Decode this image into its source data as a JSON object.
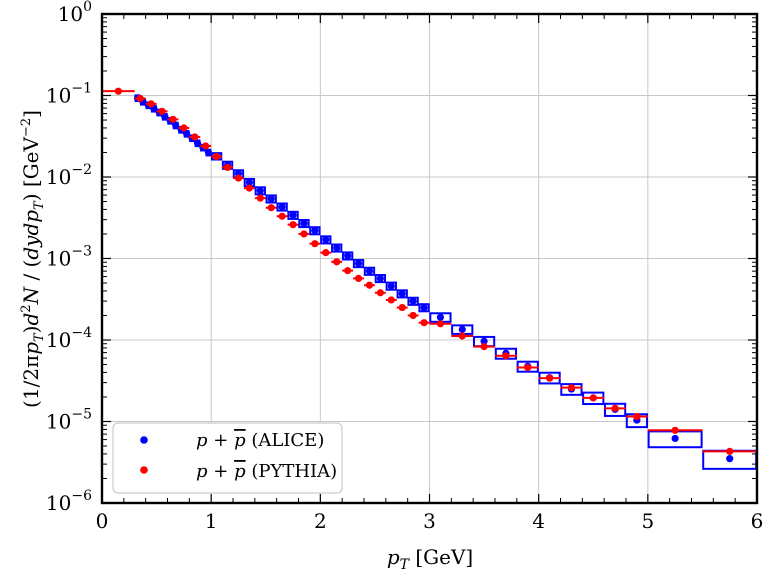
{
  "chart_data": {
    "type": "scatter",
    "title": "",
    "xlabel": "p_T [GeV]",
    "ylabel": "(1/2πp_T)d²N/(dydp_T) [GeV⁻²]",
    "xlim": [
      0,
      6
    ],
    "ylim": [
      1e-06,
      1
    ],
    "yscale": "log",
    "grid": true,
    "legend_position": "bottom-left",
    "x_ticks": [
      "0",
      "1",
      "2",
      "3",
      "4",
      "5",
      "6"
    ],
    "y_ticks": [
      {
        "base": "10",
        "exp": "−6"
      },
      {
        "base": "10",
        "exp": "−5"
      },
      {
        "base": "10",
        "exp": "−4"
      },
      {
        "base": "10",
        "exp": "−3"
      },
      {
        "base": "10",
        "exp": "−2"
      },
      {
        "base": "10",
        "exp": "−1"
      },
      {
        "base": "10",
        "exp": "0"
      }
    ],
    "series": [
      {
        "name": "ALICE",
        "legend": "p + p̄ (ALICE)",
        "color": "#0000ff",
        "marker": "dot",
        "error": "box",
        "bins": [
          0.3,
          0.35,
          0.4,
          0.45,
          0.5,
          0.55,
          0.6,
          0.65,
          0.7,
          0.75,
          0.8,
          0.85,
          0.9,
          0.95,
          1.0,
          1.1,
          1.2,
          1.3,
          1.4,
          1.5,
          1.6,
          1.7,
          1.8,
          1.9,
          2.0,
          2.1,
          2.2,
          2.3,
          2.4,
          2.5,
          2.6,
          2.7,
          2.8,
          2.9,
          3.0,
          3.2,
          3.4,
          3.6,
          3.8,
          4.0,
          4.2,
          4.4,
          4.6,
          4.8,
          5.0,
          5.5,
          6.0
        ],
        "values": [
          0.093,
          0.084,
          0.076,
          0.069,
          0.062,
          0.055,
          0.049,
          0.043,
          0.038,
          0.034,
          0.03,
          0.026,
          0.023,
          0.02,
          0.018,
          0.014,
          0.011,
          0.0086,
          0.0068,
          0.0054,
          0.0043,
          0.0034,
          0.0027,
          0.0022,
          0.0017,
          0.00135,
          0.00108,
          0.00087,
          0.0007,
          0.00057,
          0.00046,
          0.00037,
          0.0003,
          0.00025,
          0.00019,
          0.000135,
          9.65e-05,
          6.85e-05,
          4.75e-05,
          3.45e-05,
          2.5e-05,
          1.95e-05,
          1.41e-05,
          1.04e-05,
          6.2e-06,
          3.5e-06
        ],
        "err_rel": [
          0.08,
          0.08,
          0.08,
          0.08,
          0.08,
          0.08,
          0.08,
          0.08,
          0.08,
          0.08,
          0.08,
          0.08,
          0.08,
          0.08,
          0.09,
          0.1,
          0.1,
          0.1,
          0.1,
          0.1,
          0.1,
          0.1,
          0.1,
          0.1,
          0.1,
          0.1,
          0.1,
          0.1,
          0.1,
          0.1,
          0.1,
          0.1,
          0.1,
          0.1,
          0.12,
          0.12,
          0.13,
          0.14,
          0.14,
          0.15,
          0.15,
          0.16,
          0.17,
          0.18,
          0.22,
          0.25
        ]
      },
      {
        "name": "PYTHIA",
        "legend": "p + p̄ (PYTHIA)",
        "color": "#ff0000",
        "marker": "dot",
        "error": "xbar",
        "x": [
          0.15,
          0.35,
          0.45,
          0.55,
          0.65,
          0.75,
          0.85,
          0.95,
          1.05,
          1.15,
          1.25,
          1.35,
          1.45,
          1.55,
          1.65,
          1.75,
          1.85,
          1.95,
          2.05,
          2.15,
          2.25,
          2.35,
          2.45,
          2.55,
          2.65,
          2.75,
          2.85,
          2.95,
          3.1,
          3.3,
          3.5,
          3.7,
          3.9,
          4.1,
          4.3,
          4.5,
          4.7,
          4.9,
          5.25,
          5.75
        ],
        "xerr": [
          0.15,
          0.05,
          0.05,
          0.05,
          0.05,
          0.05,
          0.05,
          0.05,
          0.05,
          0.05,
          0.05,
          0.05,
          0.05,
          0.05,
          0.05,
          0.05,
          0.05,
          0.05,
          0.05,
          0.05,
          0.05,
          0.05,
          0.05,
          0.05,
          0.05,
          0.05,
          0.05,
          0.05,
          0.1,
          0.1,
          0.1,
          0.1,
          0.1,
          0.1,
          0.1,
          0.1,
          0.1,
          0.1,
          0.25,
          0.25
        ],
        "y": [
          0.113,
          0.092,
          0.079,
          0.064,
          0.051,
          0.04,
          0.031,
          0.024,
          0.0178,
          0.0131,
          0.0097,
          0.0073,
          0.0055,
          0.0042,
          0.0033,
          0.0026,
          0.002,
          0.00152,
          0.00118,
          0.00091,
          0.00071,
          0.00057,
          0.00047,
          0.00038,
          0.00031,
          0.00025,
          0.0002,
          0.000163,
          0.000158,
          0.000112,
          8.3e-05,
          6.4e-05,
          4.6e-05,
          3.4e-05,
          2.6e-05,
          1.95e-05,
          1.45e-05,
          1.15e-05,
          7.8e-06,
          4.3e-06
        ]
      }
    ]
  }
}
